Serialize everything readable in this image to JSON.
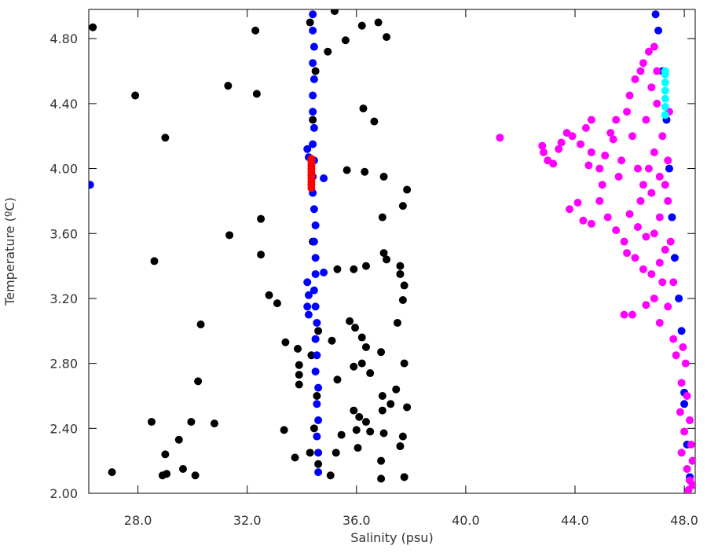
{
  "chart_data": {
    "type": "scatter",
    "x_label": "Salinity (psu)",
    "y_label": "Temperature (ºC)",
    "xlim": [
      26.2,
      48.4
    ],
    "ylim": [
      2.0,
      4.98
    ],
    "xticks": [
      {
        "value": 28,
        "label": "28.0"
      },
      {
        "value": 32,
        "label": "32.0"
      },
      {
        "value": 36,
        "label": "36.0"
      },
      {
        "value": 40,
        "label": "40.0"
      },
      {
        "value": 44,
        "label": "44.0"
      },
      {
        "value": 48,
        "label": "48.0"
      }
    ],
    "yticks": [
      {
        "value": 2,
        "label": "2.00"
      },
      {
        "value": 2.4,
        "label": "2.40"
      },
      {
        "value": 2.8,
        "label": "2.80"
      },
      {
        "value": 3.2,
        "label": "3.20"
      },
      {
        "value": 3.6,
        "label": "3.60"
      },
      {
        "value": 4,
        "label": "4.00"
      },
      {
        "value": 4.4,
        "label": "4.40"
      },
      {
        "value": 4.8,
        "label": "4.80"
      }
    ],
    "series": [
      {
        "color": "#000000",
        "x": [
          26.35,
          27.9,
          29.0,
          28.6,
          31.3,
          32.3,
          32.35,
          31.35,
          32.5,
          32.5,
          32.8,
          33.1,
          30.3,
          30.2,
          28.5,
          29.95,
          30.8,
          29.5,
          29.0,
          27.05,
          28.9,
          29.05,
          29.65,
          30.1,
          35.2,
          35.6,
          36.2,
          36.8,
          37.1,
          34.95,
          36.25,
          36.65,
          35.65,
          36.3,
          37.0,
          37.85,
          37.7,
          36.95,
          37.0,
          37.1,
          36.35,
          37.6,
          35.9,
          35.3,
          37.6,
          37.75,
          37.7,
          37.5,
          35.75,
          35.95,
          36.2,
          36.35,
          35.1,
          33.4,
          33.85,
          36.9,
          36.2,
          35.9,
          37.75,
          33.9,
          33.9,
          35.3,
          36.5,
          36.95,
          37.45,
          35.9,
          36.1,
          36.35,
          36.95,
          37.25,
          37.85,
          33.35,
          35.45,
          36.0,
          36.5,
          37.0,
          37.7,
          36.05,
          37.6,
          33.75,
          35.25,
          36.9,
          35.05,
          36.9,
          37.75,
          33.9,
          34.3,
          34.5,
          34.4,
          34.6,
          34.35,
          34.55,
          34.45,
          34.3,
          34.6,
          34.4,
          34.5
        ],
        "y": [
          4.87,
          4.45,
          4.19,
          3.43,
          4.51,
          4.85,
          4.46,
          3.59,
          3.69,
          3.47,
          3.22,
          3.17,
          3.04,
          2.69,
          2.44,
          2.44,
          2.43,
          2.33,
          2.24,
          2.13,
          2.11,
          2.12,
          2.15,
          2.11,
          4.97,
          4.79,
          4.88,
          4.9,
          4.81,
          4.72,
          4.37,
          4.29,
          3.99,
          3.98,
          3.95,
          3.87,
          3.77,
          3.7,
          3.48,
          3.44,
          3.4,
          3.4,
          3.38,
          3.38,
          3.35,
          3.28,
          3.19,
          3.05,
          3.06,
          3.02,
          2.96,
          2.9,
          2.94,
          2.93,
          2.89,
          2.87,
          2.8,
          2.78,
          2.8,
          2.73,
          2.67,
          2.7,
          2.74,
          2.6,
          2.64,
          2.51,
          2.47,
          2.44,
          2.51,
          2.55,
          2.53,
          2.39,
          2.36,
          2.39,
          2.38,
          2.37,
          2.35,
          2.28,
          2.29,
          2.22,
          2.25,
          2.2,
          2.11,
          2.09,
          2.1,
          2.79,
          4.9,
          4.6,
          4.3,
          3.0,
          2.85,
          2.6,
          2.4,
          2.25,
          2.18,
          3.55,
          2.95
        ]
      },
      {
        "color": "#0000ff",
        "x": [
          34.4,
          34.4,
          34.45,
          34.4,
          34.45,
          34.4,
          34.4,
          34.45,
          34.4,
          34.45,
          34.4,
          34.4,
          34.45,
          34.5,
          34.45,
          34.5,
          34.5,
          34.45,
          34.5,
          34.55,
          34.5,
          34.55,
          34.5,
          34.6,
          34.55,
          34.6,
          34.55,
          34.6,
          34.6,
          34.2,
          34.25,
          34.2,
          34.25,
          34.2,
          34.25,
          34.8,
          34.8,
          26.25,
          46.95,
          47.05,
          47.2,
          47.35,
          47.45,
          47.55,
          47.65,
          47.8,
          47.9,
          48.0,
          48.0,
          48.1,
          48.2
        ],
        "y": [
          4.95,
          4.85,
          4.75,
          4.65,
          4.55,
          4.45,
          4.35,
          4.25,
          4.15,
          4.05,
          3.95,
          3.85,
          3.75,
          3.65,
          3.55,
          3.45,
          3.35,
          3.25,
          3.15,
          3.05,
          2.95,
          2.85,
          2.75,
          2.65,
          2.55,
          2.45,
          2.35,
          2.25,
          2.13,
          4.12,
          4.07,
          3.3,
          3.22,
          3.15,
          3.1,
          3.94,
          3.36,
          3.9,
          4.95,
          4.85,
          4.6,
          4.3,
          4.0,
          3.7,
          3.45,
          3.2,
          3.0,
          2.62,
          2.55,
          2.3,
          2.1
        ]
      },
      {
        "color": "#ff0000",
        "x": [
          34.35,
          34.35,
          34.35,
          34.35,
          34.35,
          34.35,
          34.35,
          34.35,
          34.35,
          34.35
        ],
        "y": [
          3.88,
          3.9,
          3.92,
          3.94,
          3.96,
          3.98,
          4.0,
          4.02,
          4.04,
          4.06
        ]
      },
      {
        "color": "#ff00ff",
        "x": [
          41.25,
          42.8,
          42.85,
          43.0,
          43.2,
          43.4,
          43.5,
          43.7,
          43.9,
          44.2,
          44.4,
          44.6,
          44.5,
          44.9,
          45.1,
          45.3,
          45.5,
          45.4,
          45.7,
          45.9,
          46.0,
          46.1,
          46.2,
          46.3,
          46.4,
          46.5,
          46.6,
          46.7,
          46.8,
          46.9,
          47.0,
          46.5,
          46.8,
          47.1,
          44.1,
          43.8,
          44.3,
          44.6,
          44.9,
          45.2,
          45.5,
          45.8,
          46.0,
          46.3,
          46.6,
          46.9,
          47.1,
          45.9,
          46.2,
          46.5,
          46.8,
          47.1,
          47.3,
          47.4,
          47.2,
          47.0,
          46.9,
          47.4,
          47.5,
          47.6,
          46.9,
          46.6,
          46.1,
          45.8,
          47.1,
          47.4,
          47.6,
          47.7,
          47.95,
          48.05,
          47.9,
          48.1,
          47.85,
          48.2,
          48.0,
          48.25,
          47.9,
          48.3,
          48.1,
          48.2,
          48.3,
          48.15,
          47.3,
          47.45,
          47.2,
          46.4,
          46.7,
          45.6,
          44.6,
          45.0
        ],
        "y": [
          4.19,
          4.14,
          4.1,
          4.05,
          4.03,
          4.12,
          4.16,
          4.22,
          4.2,
          4.15,
          4.25,
          4.1,
          4.02,
          4.0,
          4.08,
          4.22,
          4.3,
          4.18,
          4.05,
          4.35,
          4.45,
          4.2,
          4.55,
          4.0,
          4.6,
          4.65,
          4.3,
          4.72,
          4.5,
          4.1,
          4.4,
          3.9,
          3.85,
          3.95,
          3.79,
          3.75,
          3.68,
          3.66,
          3.8,
          3.7,
          3.62,
          3.55,
          3.72,
          3.64,
          3.58,
          3.6,
          3.7,
          3.48,
          3.45,
          3.38,
          3.35,
          3.42,
          3.5,
          3.8,
          4.2,
          4.6,
          4.75,
          4.05,
          3.55,
          3.3,
          3.2,
          3.16,
          3.1,
          3.1,
          3.05,
          3.15,
          2.95,
          2.85,
          2.9,
          2.8,
          2.68,
          2.6,
          2.5,
          2.45,
          2.38,
          2.3,
          2.25,
          2.2,
          2.15,
          2.08,
          2.05,
          2.02,
          3.9,
          4.35,
          3.3,
          3.8,
          4.0,
          3.95,
          4.3,
          3.9
        ]
      },
      {
        "color": "#00ffff",
        "x": [
          47.3,
          47.3,
          47.3,
          47.3,
          47.3,
          47.3,
          47.3
        ],
        "y": [
          4.33,
          4.38,
          4.43,
          4.48,
          4.53,
          4.58,
          4.6
        ]
      }
    ]
  }
}
